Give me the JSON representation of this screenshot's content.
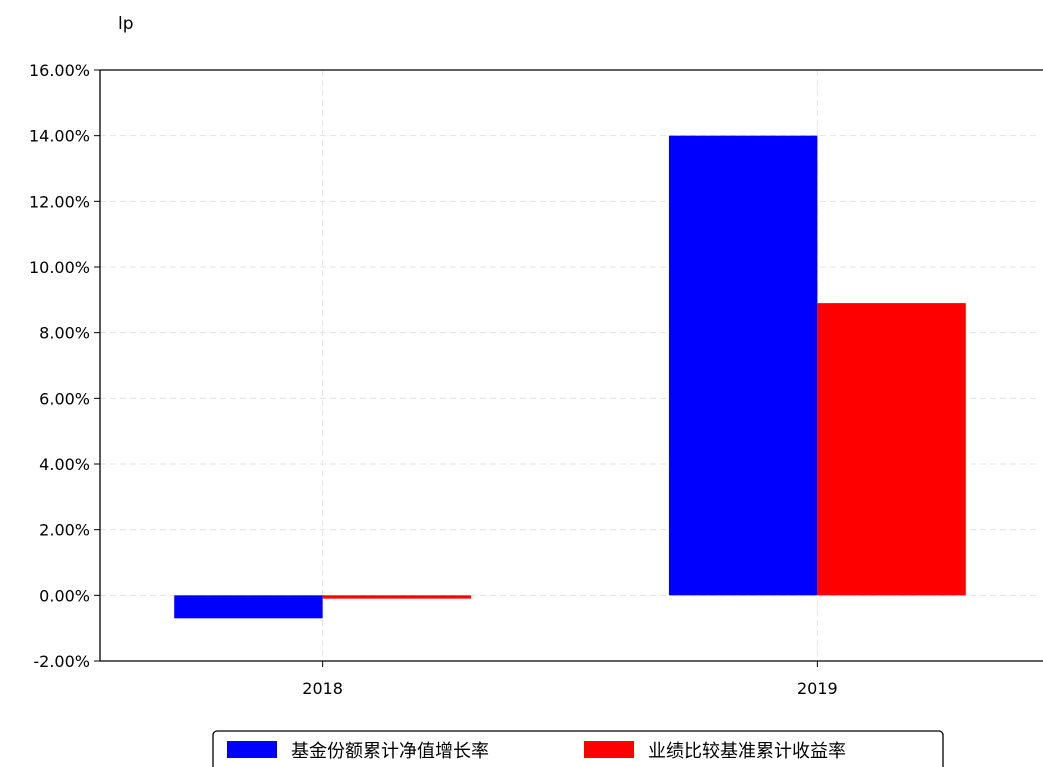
{
  "chart_data": {
    "type": "bar",
    "title": "",
    "corner_label": "lp",
    "xlabel": "",
    "ylabel": "",
    "categories": [
      "2018",
      "2019"
    ],
    "series": [
      {
        "name": "基金份额累计净值增长率",
        "color": "#0000ff",
        "values": [
          -0.7,
          14.0
        ]
      },
      {
        "name": "业绩比较基准累计收益率",
        "color": "#ff0000",
        "values": [
          -0.1,
          8.9
        ]
      }
    ],
    "ylim": [
      -2,
      16
    ],
    "yticks": [
      -2,
      0,
      2,
      4,
      6,
      8,
      10,
      12,
      14,
      16
    ],
    "ytick_labels": [
      "-2.00%",
      "0.00%",
      "2.00%",
      "4.00%",
      "6.00%",
      "8.00%",
      "10.00%",
      "12.00%",
      "14.00%",
      "16.00%"
    ],
    "grid": true,
    "legend_position": "bottom-center"
  }
}
